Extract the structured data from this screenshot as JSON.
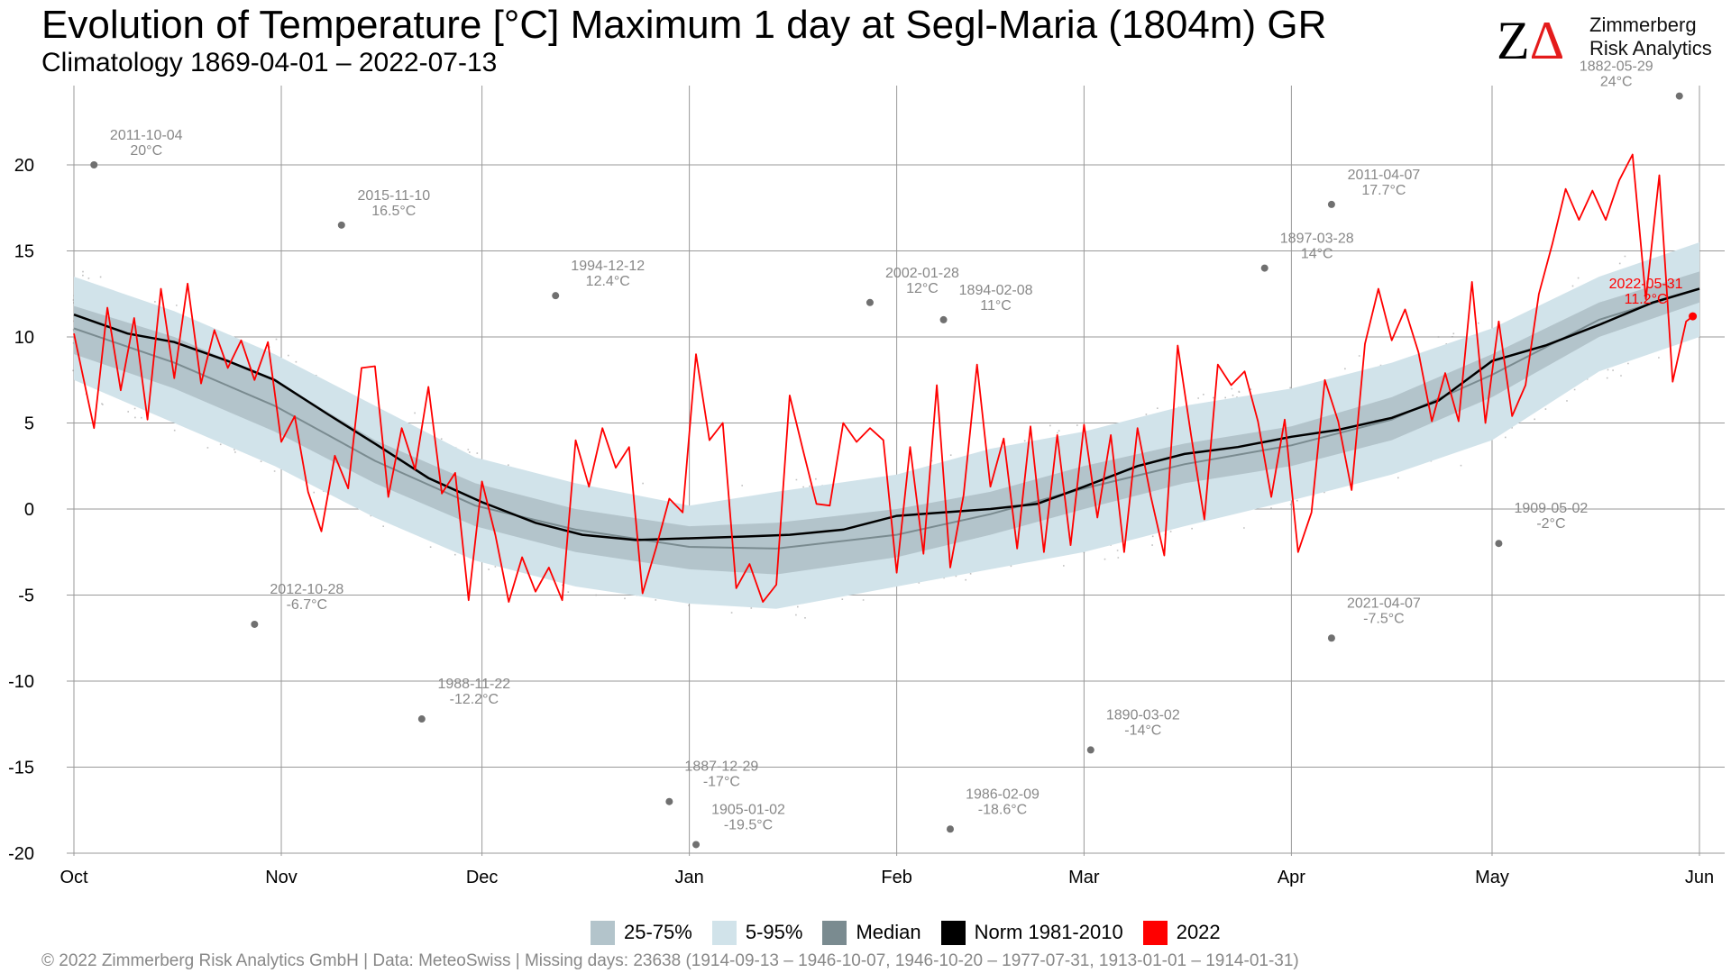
{
  "header": {
    "title": "Evolution of Temperature [°C] Maximum 1 day at Segl-Maria (1804m) GR",
    "subtitle": "Climatology 1869-04-01 – 2022-07-13"
  },
  "logo": {
    "mark": "ZΔ",
    "line1": "Zimmerberg",
    "line2": "Risk Analytics"
  },
  "footer": {
    "text": "©  2022 Zimmerberg Risk Analytics GmbH | Data: MeteoSwiss | Missing days: 23638 (1914-09-13 – 1946-10-07, 1946-10-20 – 1977-07-31, 1913-01-01 – 1914-01-31)"
  },
  "colors": {
    "band_25_75": "#b3c4cb",
    "band_5_95": "#d1e3ea",
    "median": "#7a8b90",
    "norm": "#000000",
    "current": "#ff0000",
    "records": "#707070",
    "points": "#c0c0c0",
    "grid": "#999999"
  },
  "legend": [
    {
      "label": "25-75%",
      "color": "#b3c4cb"
    },
    {
      "label": "5-95%",
      "color": "#d1e3ea"
    },
    {
      "label": "Median",
      "color": "#7a8b90"
    },
    {
      "label": "Norm 1981-2010",
      "color": "#000000"
    },
    {
      "label": "2022",
      "color": "#ff0000"
    }
  ],
  "chart_data": {
    "type": "line",
    "title": "Evolution of Temperature [°C] Maximum 1 day at Segl-Maria (1804m) GR",
    "subtitle": "Climatology 1869-04-01 – 2022-07-13",
    "xlabel": "",
    "ylabel": "",
    "x_axis": {
      "unit": "day of season starting Oct 1",
      "range": [
        0,
        243
      ],
      "ticks": [
        {
          "day": 0,
          "label": "Oct"
        },
        {
          "day": 31,
          "label": "Nov"
        },
        {
          "day": 61,
          "label": "Dec"
        },
        {
          "day": 92,
          "label": "Jan"
        },
        {
          "day": 123,
          "label": "Feb"
        },
        {
          "day": 151,
          "label": "Mar"
        },
        {
          "day": 182,
          "label": "Apr"
        },
        {
          "day": 212,
          "label": "May"
        },
        {
          "day": 243,
          "label": "Jun"
        }
      ]
    },
    "y_axis": {
      "range": [
        -20,
        24
      ],
      "ticks": [
        -20,
        -15,
        -10,
        -5,
        0,
        5,
        10,
        15,
        20
      ]
    },
    "grid": true,
    "legend_position": "bottom",
    "band_5_95": {
      "x": [
        0,
        15,
        30,
        45,
        60,
        75,
        92,
        105,
        123,
        137,
        151,
        166,
        182,
        197,
        212,
        228,
        243
      ],
      "lower": [
        7.5,
        5.0,
        2.5,
        -0.5,
        -3.0,
        -4.5,
        -5.5,
        -5.8,
        -4.5,
        -3.5,
        -2.5,
        -1.0,
        0.5,
        2.0,
        4.0,
        8.0,
        10.0
      ],
      "upper": [
        13.5,
        11.5,
        9.0,
        6.0,
        3.0,
        1.5,
        0.2,
        1.0,
        2.0,
        3.5,
        4.5,
        6.0,
        7.0,
        8.5,
        10.5,
        13.5,
        15.5
      ]
    },
    "band_25_75": {
      "x": [
        0,
        15,
        30,
        45,
        60,
        75,
        92,
        105,
        123,
        137,
        151,
        166,
        182,
        197,
        212,
        228,
        243
      ],
      "lower": [
        9.0,
        7.0,
        4.5,
        1.5,
        -1.0,
        -2.5,
        -3.5,
        -3.8,
        -2.8,
        -1.5,
        0.0,
        1.5,
        2.5,
        4.0,
        6.5,
        10.0,
        12.0
      ],
      "upper": [
        11.8,
        10.0,
        7.5,
        4.0,
        1.5,
        0.0,
        -1.0,
        -0.8,
        0.0,
        1.0,
        2.5,
        3.8,
        4.8,
        6.5,
        9.0,
        12.0,
        13.8
      ]
    },
    "median": {
      "x": [
        0,
        15,
        30,
        45,
        60,
        75,
        92,
        105,
        123,
        137,
        151,
        166,
        182,
        197,
        212,
        228,
        243
      ],
      "values": [
        10.5,
        8.5,
        6.0,
        2.8,
        0.2,
        -1.2,
        -2.2,
        -2.3,
        -1.5,
        -0.3,
        1.2,
        2.6,
        3.7,
        5.2,
        7.8,
        11.0,
        12.8
      ]
    },
    "norm_1981_2010": {
      "x": [
        0,
        8,
        15,
        23,
        30,
        38,
        45,
        53,
        61,
        69,
        76,
        84,
        92,
        100,
        107,
        115,
        123,
        130,
        137,
        144,
        151,
        159,
        166,
        174,
        182,
        189,
        197,
        204,
        212,
        220,
        228,
        236,
        243
      ],
      "values": [
        11.3,
        10.2,
        9.7,
        8.6,
        7.5,
        5.5,
        3.8,
        1.8,
        0.4,
        -0.8,
        -1.5,
        -1.8,
        -1.7,
        -1.6,
        -1.5,
        -1.2,
        -0.4,
        -0.2,
        0.0,
        0.3,
        1.3,
        2.5,
        3.2,
        3.6,
        4.2,
        4.6,
        5.3,
        6.3,
        8.6,
        9.5,
        10.7,
        12.0,
        12.8
      ]
    },
    "series_2022": {
      "name": "2022",
      "x": [
        0,
        3,
        5,
        7,
        9,
        11,
        13,
        15,
        17,
        19,
        21,
        23,
        25,
        27,
        29,
        31,
        33,
        35,
        37,
        39,
        41,
        43,
        45,
        47,
        49,
        51,
        53,
        55,
        57,
        59,
        61,
        63,
        65,
        67,
        69,
        71,
        73,
        75,
        77,
        79,
        81,
        83,
        85,
        87,
        89,
        91,
        93,
        95,
        97,
        99,
        101,
        103,
        105,
        107,
        109,
        111,
        113,
        115,
        117,
        119,
        121,
        123,
        125,
        127,
        129,
        131,
        133,
        135,
        137,
        139,
        141,
        143,
        145,
        147,
        149,
        151,
        153,
        155,
        157,
        159,
        161,
        163,
        165,
        167,
        169,
        171,
        173,
        175,
        177,
        179,
        181,
        183,
        185,
        187,
        189,
        191,
        193,
        195,
        197,
        199,
        201,
        203,
        205,
        207,
        209,
        211,
        213,
        215,
        217,
        219,
        221,
        223,
        225,
        227,
        229,
        231,
        233,
        235,
        237,
        239,
        241,
        242
      ],
      "values": [
        10.2,
        4.7,
        11.7,
        6.9,
        11.1,
        5.2,
        12.8,
        7.6,
        13.1,
        7.3,
        10.4,
        8.2,
        9.8,
        7.5,
        9.7,
        3.9,
        5.4,
        1.0,
        -1.3,
        3.1,
        1.2,
        8.2,
        8.3,
        0.7,
        4.7,
        2.3,
        7.1,
        0.9,
        2.1,
        -5.3,
        1.6,
        -1.5,
        -5.4,
        -2.8,
        -4.8,
        -3.4,
        -5.3,
        4.0,
        1.3,
        4.7,
        2.4,
        3.6,
        -4.9,
        -2.3,
        0.6,
        -0.2,
        9.0,
        4.0,
        5.0,
        -4.6,
        -3.2,
        -5.4,
        -4.4,
        6.6,
        3.4,
        0.3,
        0.2,
        5.0,
        3.9,
        4.7,
        4.0,
        -3.7,
        3.6,
        -2.6,
        7.2,
        -3.4,
        0.8,
        8.4,
        1.3,
        4.1,
        -2.3,
        4.8,
        -2.5,
        4.3,
        -2.1,
        4.9,
        -0.5,
        4.3,
        -2.5,
        4.7,
        0.7,
        -2.7,
        9.5,
        4.3,
        -0.6,
        8.4,
        7.2,
        8.0,
        5.1,
        0.7,
        5.2,
        -2.5,
        -0.2,
        7.5,
        5.1,
        1.1,
        9.6,
        12.8,
        9.8,
        11.6,
        9.1,
        5.1,
        7.9,
        5.1,
        13.2,
        5.0,
        10.9,
        5.4,
        7.2,
        12.5,
        15.4,
        18.6,
        16.8,
        18.5,
        16.8,
        19.1,
        20.6,
        12.2,
        19.4,
        7.4,
        10.9,
        11.2
      ]
    },
    "records": [
      {
        "date": "2011-10-04",
        "label": "20°C",
        "day": 3,
        "value": 20.0
      },
      {
        "date": "2015-11-10",
        "label": "16.5°C",
        "day": 40,
        "value": 16.5
      },
      {
        "date": "1994-12-12",
        "label": "12.4°C",
        "day": 72,
        "value": 12.4
      },
      {
        "date": "2002-01-28",
        "label": "12°C",
        "day": 119,
        "value": 12.0
      },
      {
        "date": "1894-02-08",
        "label": "11°C",
        "day": 130,
        "value": 11.0
      },
      {
        "date": "1897-03-28",
        "label": "14°C",
        "day": 178,
        "value": 14.0
      },
      {
        "date": "2011-04-07",
        "label": "17.7°C",
        "day": 188,
        "value": 17.7
      },
      {
        "date": "1882-05-29",
        "label": "24°C",
        "day": 240,
        "value": 24.0
      },
      {
        "date": "2012-10-28",
        "label": "-6.7°C",
        "day": 27,
        "value": -6.7
      },
      {
        "date": "1988-11-22",
        "label": "-12.2°C",
        "day": 52,
        "value": -12.2
      },
      {
        "date": "1887-12-29",
        "label": "-17°C",
        "day": 89,
        "value": -17.0
      },
      {
        "date": "1905-01-02",
        "label": "-19.5°C",
        "day": 93,
        "value": -19.5
      },
      {
        "date": "1986-02-09",
        "label": "-18.6°C",
        "day": 131,
        "value": -18.6
      },
      {
        "date": "1890-03-02",
        "label": "-14°C",
        "day": 152,
        "value": -14.0
      },
      {
        "date": "2021-04-07",
        "label": "-7.5°C",
        "day": 188,
        "value": -7.5
      },
      {
        "date": "1909-05-02",
        "label": "-2°C",
        "day": 213,
        "value": -2.0
      }
    ],
    "latest": {
      "date": "2022-05-31",
      "label": "11.2°C",
      "day": 242,
      "value": 11.2
    }
  }
}
